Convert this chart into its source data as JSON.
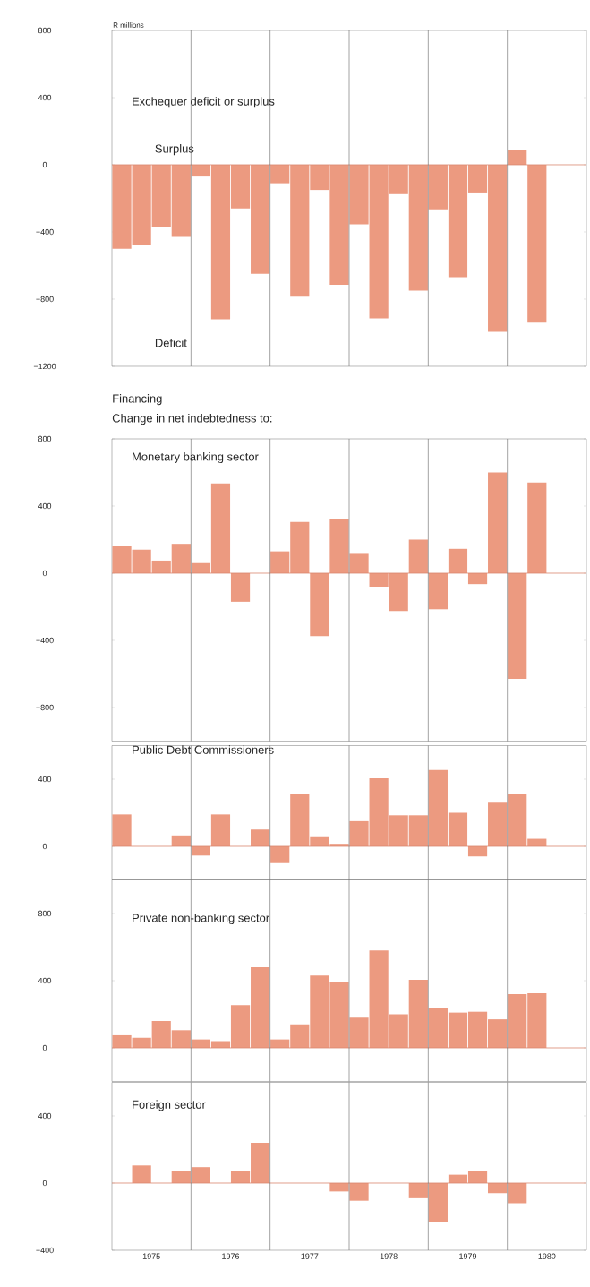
{
  "chart_data": [
    {
      "type": "bar",
      "title": "Exchequer deficit or surplus",
      "ylabel": "R millions",
      "annotations": [
        "Surplus",
        "Deficit"
      ],
      "color": "#ec9a80",
      "x": [
        1975.125,
        1975.375,
        1975.625,
        1975.875,
        1976.125,
        1976.375,
        1976.625,
        1976.875,
        1977.125,
        1977.375,
        1977.625,
        1977.875,
        1978.125,
        1978.375,
        1978.625,
        1978.875,
        1979.125,
        1979.375,
        1979.625,
        1979.875,
        1980.125,
        1980.375
      ],
      "values": [
        -500,
        -480,
        -370,
        -430,
        -70,
        -920,
        -260,
        -650,
        -110,
        -785,
        -150,
        -715,
        -355,
        -915,
        -175,
        -750,
        -265,
        -670,
        -165,
        -995,
        90,
        -940
      ],
      "xlim": [
        1975,
        1981
      ],
      "ylim": [
        -1200,
        800
      ],
      "yticks": [
        {
          "value": -1200,
          "label": "−1200"
        },
        {
          "value": -800,
          "label": "−800"
        },
        {
          "value": -400,
          "label": "−400"
        },
        0,
        400,
        800
      ],
      "tick_labels": "y",
      "ref_lines": [
        {
          "axis": "y",
          "value": 0,
          "color": "#d98870"
        },
        {
          "axis": "x",
          "value": 1976,
          "color": "#666666"
        },
        {
          "axis": "x",
          "value": 1977,
          "color": "#666666"
        },
        {
          "axis": "x",
          "value": 1978,
          "color": "#666666"
        },
        {
          "axis": "x",
          "value": 1979,
          "color": "#666666"
        },
        {
          "axis": "x",
          "value": 1980,
          "color": "#666666"
        }
      ]
    },
    {
      "type": "bar",
      "title": "Monetary banking sector",
      "annotations": [
        "Financing",
        "Change in net indebtedness to:"
      ],
      "color": "#ec9a80",
      "x": [
        1975.125,
        1975.375,
        1975.625,
        1975.875,
        1976.125,
        1976.375,
        1976.625,
        1976.875,
        1977.125,
        1977.375,
        1977.625,
        1977.875,
        1978.125,
        1978.375,
        1978.625,
        1978.875,
        1979.125,
        1979.375,
        1979.625,
        1979.875,
        1980.125,
        1980.375
      ],
      "values": [
        160,
        140,
        75,
        175,
        60,
        535,
        -170,
        0,
        130,
        305,
        -375,
        325,
        115,
        -80,
        -225,
        200,
        -215,
        145,
        -65,
        600,
        -630,
        540
      ],
      "xlim": [
        1975,
        1981
      ],
      "ylim": [
        -1000,
        800
      ],
      "yticks": [
        {
          "value": -800,
          "label": "−800"
        },
        {
          "value": -400,
          "label": "−400"
        },
        0,
        400,
        800
      ],
      "tick_labels": "y",
      "ref_lines": [
        {
          "axis": "y",
          "value": 0,
          "color": "#d98870"
        },
        {
          "axis": "x",
          "value": 1976,
          "color": "#666666"
        },
        {
          "axis": "x",
          "value": 1977,
          "color": "#666666"
        },
        {
          "axis": "x",
          "value": 1978,
          "color": "#666666"
        },
        {
          "axis": "x",
          "value": 1979,
          "color": "#666666"
        },
        {
          "axis": "x",
          "value": 1980,
          "color": "#666666"
        }
      ]
    },
    {
      "type": "bar",
      "title": "Public Debt Commissioners",
      "color": "#ec9a80",
      "x": [
        1975.125,
        1975.375,
        1975.625,
        1975.875,
        1976.125,
        1976.375,
        1976.625,
        1976.875,
        1977.125,
        1977.375,
        1977.625,
        1977.875,
        1978.125,
        1978.375,
        1978.625,
        1978.875,
        1979.125,
        1979.375,
        1979.625,
        1979.875,
        1980.125,
        1980.375
      ],
      "values": [
        190,
        0,
        null,
        65,
        -55,
        190,
        0,
        100,
        -100,
        310,
        60,
        15,
        150,
        405,
        185,
        185,
        455,
        200,
        -60,
        260,
        310,
        45
      ],
      "xlim": [
        1975,
        1981
      ],
      "ylim": [
        -200,
        600
      ],
      "yticks": [
        0,
        400
      ],
      "tick_labels": "y",
      "ref_lines": [
        {
          "axis": "y",
          "value": 0,
          "color": "#d98870"
        },
        {
          "axis": "x",
          "value": 1976,
          "color": "#666666"
        },
        {
          "axis": "x",
          "value": 1977,
          "color": "#666666"
        },
        {
          "axis": "x",
          "value": 1978,
          "color": "#666666"
        },
        {
          "axis": "x",
          "value": 1979,
          "color": "#666666"
        },
        {
          "axis": "x",
          "value": 1980,
          "color": "#666666"
        }
      ]
    },
    {
      "type": "bar",
      "title": "Private non-banking sector",
      "color": "#ec9a80",
      "x": [
        1975.125,
        1975.375,
        1975.625,
        1975.875,
        1976.125,
        1976.375,
        1976.625,
        1976.875,
        1977.125,
        1977.375,
        1977.625,
        1977.875,
        1978.125,
        1978.375,
        1978.625,
        1978.875,
        1979.125,
        1979.375,
        1979.625,
        1979.875,
        1980.125,
        1980.375
      ],
      "values": [
        75,
        60,
        160,
        105,
        50,
        40,
        255,
        480,
        50,
        140,
        430,
        395,
        180,
        580,
        200,
        405,
        235,
        210,
        215,
        170,
        320,
        325
      ],
      "xlim": [
        1975,
        1981
      ],
      "ylim": [
        -200,
        1000
      ],
      "yticks": [
        0,
        400,
        800
      ],
      "tick_labels": "y",
      "ref_lines": [
        {
          "axis": "y",
          "value": 0,
          "color": "#d98870"
        },
        {
          "axis": "x",
          "value": 1976,
          "color": "#666666"
        },
        {
          "axis": "x",
          "value": 1977,
          "color": "#666666"
        },
        {
          "axis": "x",
          "value": 1978,
          "color": "#666666"
        },
        {
          "axis": "x",
          "value": 1979,
          "color": "#666666"
        },
        {
          "axis": "x",
          "value": 1980,
          "color": "#666666"
        }
      ]
    },
    {
      "type": "bar",
      "title": "Foreign sector",
      "color": "#ec9a80",
      "x": [
        1975.125,
        1975.375,
        1975.625,
        1975.875,
        1976.125,
        1976.375,
        1976.625,
        1976.875,
        1977.125,
        1977.375,
        1977.625,
        1977.875,
        1978.125,
        1978.375,
        1978.625,
        1978.875,
        1979.125,
        1979.375,
        1979.625,
        1979.875,
        1980.125,
        1980.375
      ],
      "values": [
        0,
        105,
        0,
        70,
        95,
        0,
        70,
        240,
        0,
        null,
        0,
        -50,
        -105,
        0,
        0,
        -90,
        -230,
        50,
        70,
        -60,
        -120,
        0
      ],
      "xlim": [
        1975,
        1981
      ],
      "ylim": [
        -400,
        600
      ],
      "yticks": [
        {
          "value": -400,
          "label": "−400"
        },
        0,
        400
      ],
      "xticks": [
        {
          "value": 1975.5,
          "label": "1975"
        },
        {
          "value": 1976.5,
          "label": "1976"
        },
        {
          "value": 1977.5,
          "label": "1977"
        },
        {
          "value": 1978.5,
          "label": "1978"
        },
        {
          "value": 1979.5,
          "label": "1979"
        },
        {
          "value": 1980.5,
          "label": "1980"
        }
      ],
      "ref_lines": [
        {
          "axis": "y",
          "value": 0,
          "color": "#d98870"
        },
        {
          "axis": "x",
          "value": 1976,
          "color": "#666666"
        },
        {
          "axis": "x",
          "value": 1977,
          "color": "#666666"
        },
        {
          "axis": "x",
          "value": 1978,
          "color": "#666666"
        },
        {
          "axis": "x",
          "value": 1979,
          "color": "#666666"
        },
        {
          "axis": "x",
          "value": 1980,
          "color": "#666666"
        }
      ]
    }
  ]
}
